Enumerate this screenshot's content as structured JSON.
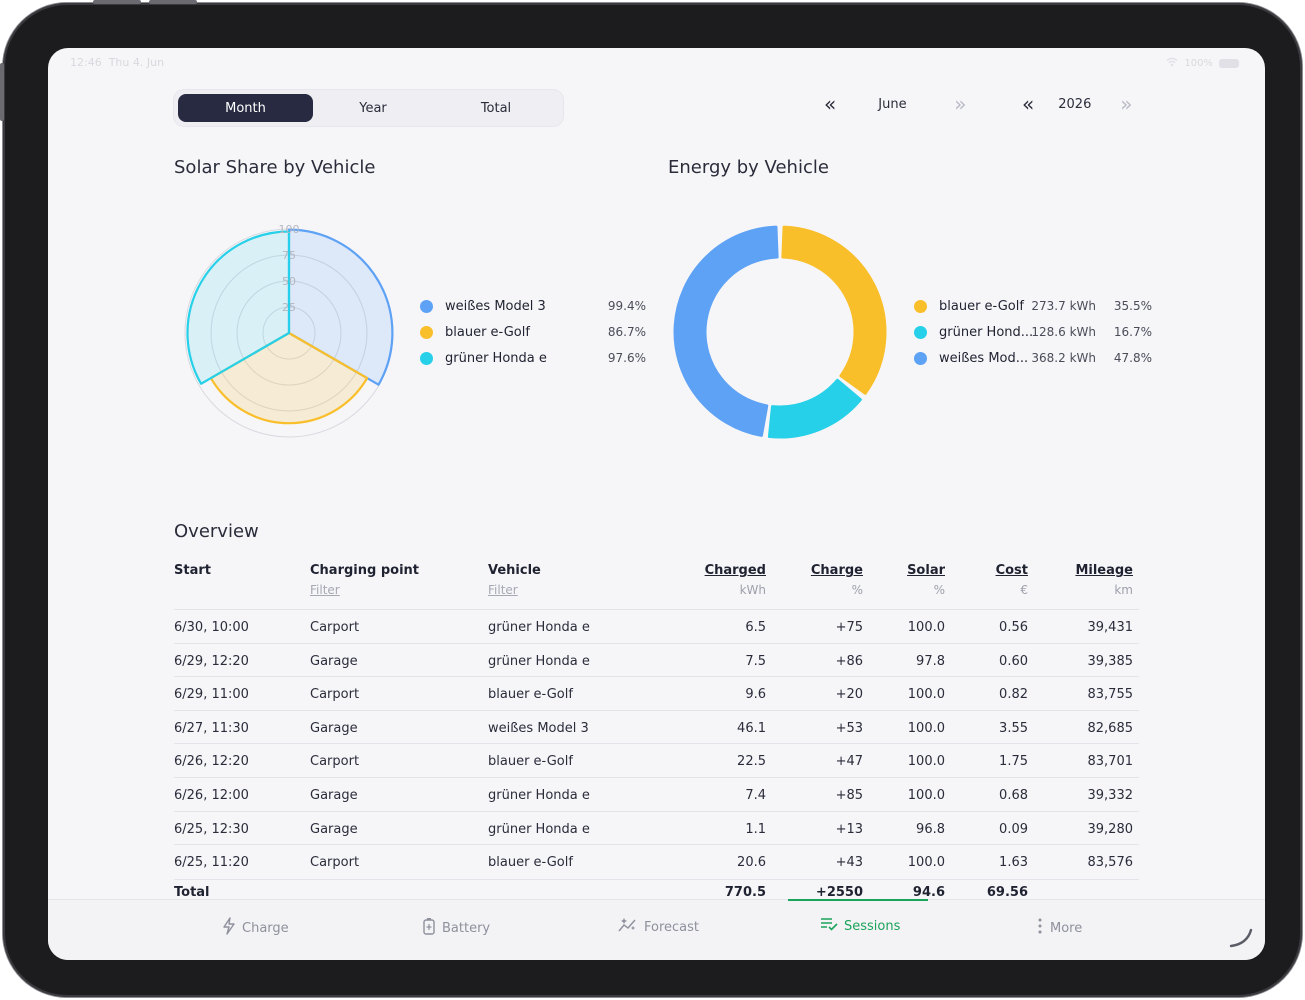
{
  "status": {
    "time": "12:46",
    "date": "Thu 4. Jun",
    "battery": "100%"
  },
  "segment": {
    "items": [
      "Month",
      "Year",
      "Total"
    ],
    "active": "Month"
  },
  "month_nav": {
    "prev": "«",
    "label": "June",
    "next": "»"
  },
  "year_nav": {
    "prev": "«",
    "label": "2026",
    "next": "»"
  },
  "colors": {
    "blue": "#5ea2f5",
    "yellow": "#f9bf2b",
    "cyan": "#26d0e8",
    "green": "#1aa35a",
    "navy": "#272a40"
  },
  "solar_share": {
    "title": "Solar Share by Vehicle",
    "ticks": [
      "100",
      "75",
      "50",
      "25"
    ],
    "legend": [
      {
        "name": "weißes Model 3",
        "value": "99.4%",
        "color": "#5ea2f5"
      },
      {
        "name": "blauer e-Golf",
        "value": "86.7%",
        "color": "#f9bf2b"
      },
      {
        "name": "grüner Honda e",
        "value": "97.6%",
        "color": "#26d0e8"
      }
    ]
  },
  "energy": {
    "title": "Energy by Vehicle",
    "legend": [
      {
        "name": "blauer e-Golf",
        "kwh": "273.7 kWh",
        "pct": "35.5%",
        "color": "#f9bf2b"
      },
      {
        "name": "grüner Hond...",
        "kwh": "128.6 kWh",
        "pct": "16.7%",
        "color": "#26d0e8"
      },
      {
        "name": "weißes Mod...",
        "kwh": "368.2 kWh",
        "pct": "47.8%",
        "color": "#5ea2f5"
      }
    ]
  },
  "chart_data": [
    {
      "type": "radar",
      "title": "Solar Share by Vehicle",
      "categories": [
        "weißes Model 3",
        "blauer e-Golf",
        "grüner Honda e"
      ],
      "values": [
        99.4,
        86.7,
        97.6
      ],
      "ylim": [
        0,
        100
      ]
    },
    {
      "type": "pie",
      "title": "Energy by Vehicle",
      "categories": [
        "blauer e-Golf",
        "grüner Honda e",
        "weißes Model 3"
      ],
      "values": [
        273.7,
        128.6,
        368.2
      ],
      "percent": [
        35.5,
        16.7,
        47.8
      ]
    }
  ],
  "overview": {
    "title": "Overview",
    "columns": {
      "start": "Start",
      "point": "Charging point",
      "vehicle": "Vehicle",
      "charged": "Charged",
      "charge": "Charge",
      "solar": "Solar",
      "cost": "Cost",
      "mileage": "Mileage"
    },
    "subs": {
      "point": "Filter",
      "vehicle": "Filter",
      "charged": "kWh",
      "charge": "%",
      "solar": "%",
      "cost": "€",
      "mileage": "km"
    },
    "rows": [
      {
        "start": "6/30, 10:00",
        "point": "Carport",
        "vehicle": "grüner Honda e",
        "charged": "6.5",
        "charge": "+75",
        "solar": "100.0",
        "cost": "0.56",
        "mileage": "39,431"
      },
      {
        "start": "6/29, 12:20",
        "point": "Garage",
        "vehicle": "grüner Honda e",
        "charged": "7.5",
        "charge": "+86",
        "solar": "97.8",
        "cost": "0.60",
        "mileage": "39,385"
      },
      {
        "start": "6/29, 11:00",
        "point": "Carport",
        "vehicle": "blauer e-Golf",
        "charged": "9.6",
        "charge": "+20",
        "solar": "100.0",
        "cost": "0.82",
        "mileage": "83,755"
      },
      {
        "start": "6/27, 11:30",
        "point": "Garage",
        "vehicle": "weißes Model 3",
        "charged": "46.1",
        "charge": "+53",
        "solar": "100.0",
        "cost": "3.55",
        "mileage": "82,685"
      },
      {
        "start": "6/26, 12:20",
        "point": "Carport",
        "vehicle": "blauer e-Golf",
        "charged": "22.5",
        "charge": "+47",
        "solar": "100.0",
        "cost": "1.75",
        "mileage": "83,701"
      },
      {
        "start": "6/26, 12:00",
        "point": "Garage",
        "vehicle": "grüner Honda e",
        "charged": "7.4",
        "charge": "+85",
        "solar": "100.0",
        "cost": "0.68",
        "mileage": "39,332"
      },
      {
        "start": "6/25, 12:30",
        "point": "Garage",
        "vehicle": "grüner Honda e",
        "charged": "1.1",
        "charge": "+13",
        "solar": "96.8",
        "cost": "0.09",
        "mileage": "39,280"
      },
      {
        "start": "6/25, 11:20",
        "point": "Carport",
        "vehicle": "blauer e-Golf",
        "charged": "20.6",
        "charge": "+43",
        "solar": "100.0",
        "cost": "1.63",
        "mileage": "83,576"
      }
    ],
    "total": {
      "label": "Total",
      "charged": "770.5",
      "charge": "+2550",
      "solar": "94.6",
      "cost": "69.56"
    }
  },
  "tabs": [
    {
      "label": "Charge",
      "icon": "bolt-icon"
    },
    {
      "label": "Battery",
      "icon": "battery-icon"
    },
    {
      "label": "Forecast",
      "icon": "sparkle-chart-icon"
    },
    {
      "label": "Sessions",
      "icon": "list-check-icon",
      "active": true
    },
    {
      "label": "More",
      "icon": "more-vertical-icon"
    }
  ]
}
